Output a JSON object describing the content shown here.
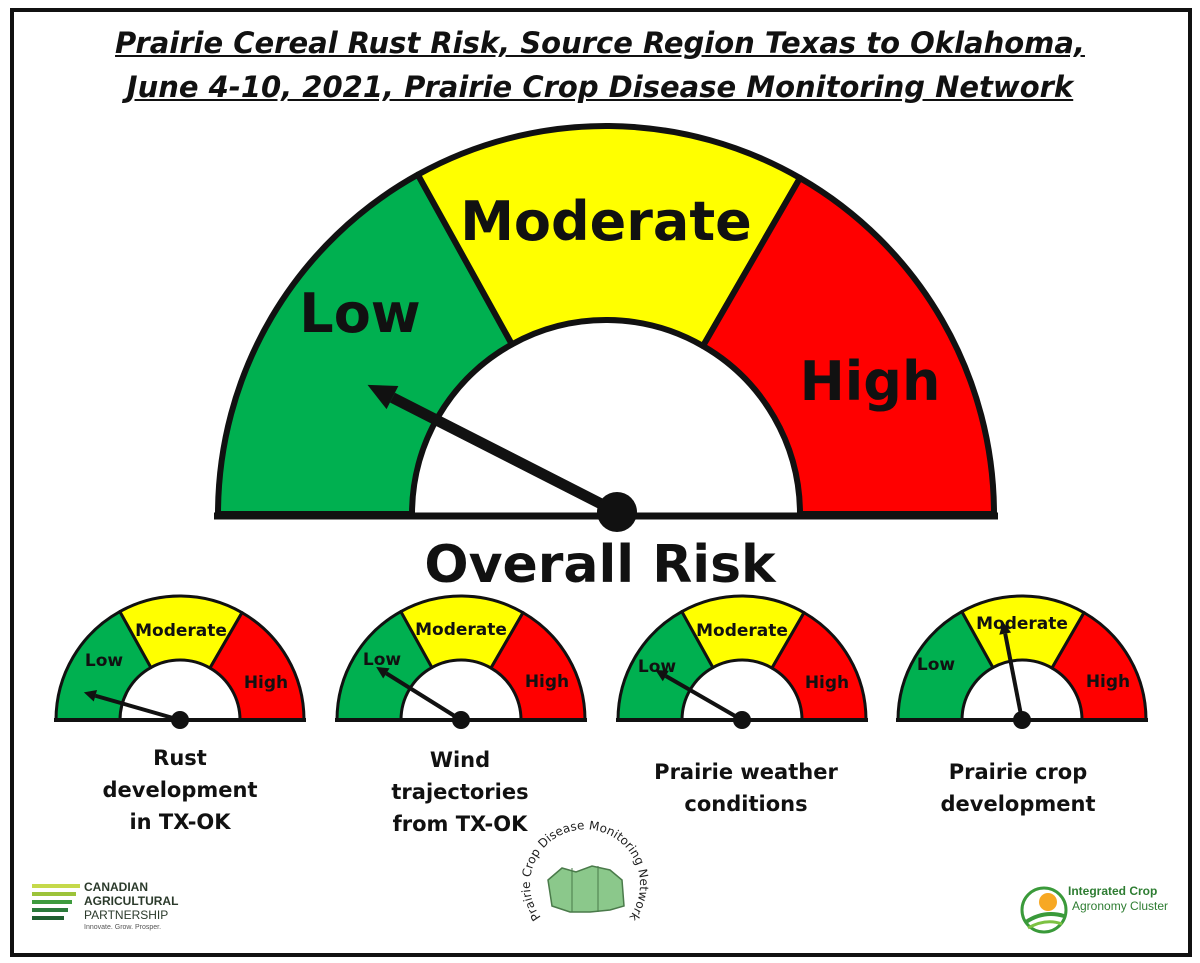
{
  "title": {
    "line1": "Prairie Cereal Rust Risk, Source Region Texas to Oklahoma,",
    "line2": "June 4-10, 2021, Prairie Crop Disease Monitoring Network"
  },
  "colors": {
    "low": "#00b050",
    "moderate": "#ffff00",
    "high": "#ff0000",
    "outline": "#111111"
  },
  "main_gauge": {
    "label": "Overall Risk",
    "zones": {
      "low": "Low",
      "moderate": "Moderate",
      "high": "High"
    },
    "needle_angle_deg": 153
  },
  "sub_gauges": [
    {
      "zones": {
        "low": "Low",
        "moderate": "Moderate",
        "high": "High"
      },
      "caption": [
        "Rust",
        "development",
        "in TX-OK"
      ],
      "needle_angle_deg": 164
    },
    {
      "zones": {
        "low": "Low",
        "moderate": "Moderate",
        "high": "High"
      },
      "caption": [
        "Wind",
        "trajectories",
        "from TX-OK"
      ],
      "needle_angle_deg": 148
    },
    {
      "zones": {
        "low": "Low",
        "moderate": "Moderate",
        "high": "High"
      },
      "caption": [
        "Prairie weather",
        "conditions"
      ],
      "needle_angle_deg": 150
    },
    {
      "zones": {
        "low": "Low",
        "moderate": "Moderate",
        "high": "High"
      },
      "caption": [
        "Prairie crop",
        "development"
      ],
      "needle_angle_deg": 101
    }
  ],
  "logos": {
    "cap": {
      "lines": [
        "CANADIAN",
        "AGRICULTURAL",
        "PARTNERSHIP"
      ],
      "tagline": "Innovate. Grow. Prosper."
    },
    "network": "Prairie Crop Disease Monitoring Network",
    "icac": {
      "line1": "Integrated Crop",
      "line2": "Agronomy Cluster"
    }
  }
}
